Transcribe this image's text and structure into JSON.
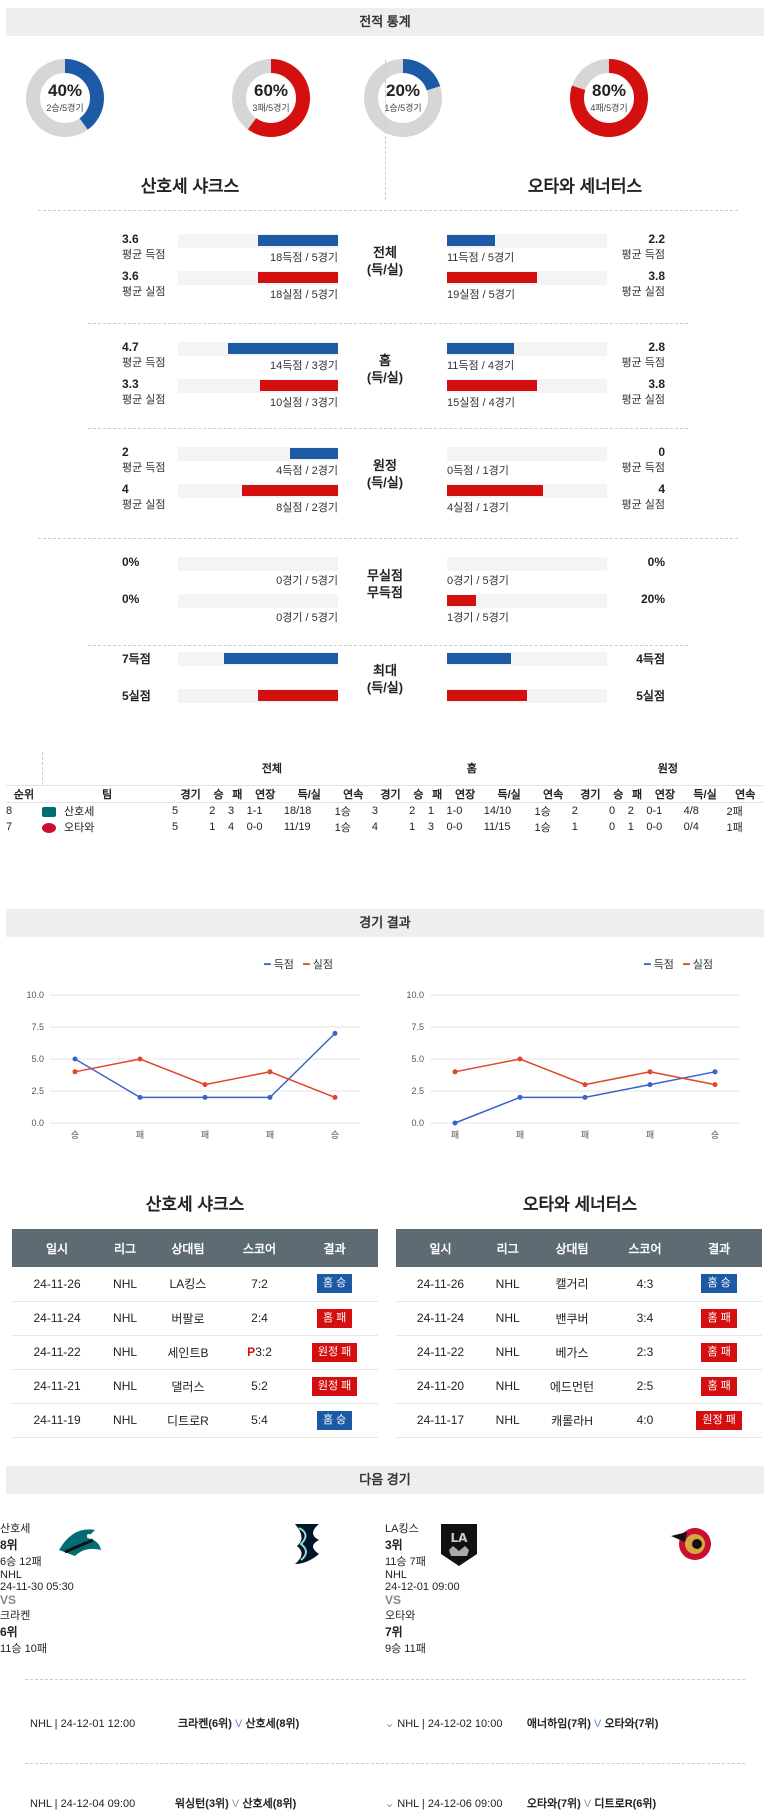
{
  "sections": {
    "stats": "전적 통계",
    "results": "경기 결과",
    "next": "다음 경기"
  },
  "donuts": [
    {
      "pct": "40%",
      "sub": "2승/5경기",
      "value": 0.4,
      "color": "#1c5aa6"
    },
    {
      "pct": "60%",
      "sub": "3패/5경기",
      "value": 0.6,
      "color": "#d40f0f"
    },
    {
      "pct": "20%",
      "sub": "1승/5경기",
      "value": 0.2,
      "color": "#1c5aa6"
    },
    {
      "pct": "80%",
      "sub": "4패/5경기",
      "value": 0.8,
      "color": "#d40f0f"
    }
  ],
  "teams": {
    "home": "산호세 샤크스",
    "away": "오타와 세너터스"
  },
  "stat_groups": [
    {
      "mid": [
        "전체",
        "(득/실)"
      ],
      "rows": [
        {
          "lval": "3.6",
          "llbl": "평균 득점",
          "lcap": "18득점 / 5경기",
          "lfill": 0.5,
          "lcolor": "blue",
          "rval": "2.2",
          "rlbl": "평균 득점",
          "rcap": "11득점 / 5경기",
          "rfill": 0.3,
          "rcolor": "blue"
        },
        {
          "lval": "3.6",
          "llbl": "평균 실점",
          "lcap": "18실점 / 5경기",
          "lfill": 0.5,
          "lcolor": "red",
          "rval": "3.8",
          "rlbl": "평균 실점",
          "rcap": "19실점 / 5경기",
          "rfill": 0.56,
          "rcolor": "red"
        }
      ]
    },
    {
      "mid": [
        "홈",
        "(득/실)"
      ],
      "rows": [
        {
          "lval": "4.7",
          "llbl": "평균 득점",
          "lcap": "14득점 / 3경기",
          "lfill": 0.69,
          "lcolor": "blue",
          "rval": "2.8",
          "rlbl": "평균 득점",
          "rcap": "11득점 / 4경기",
          "rfill": 0.42,
          "rcolor": "blue"
        },
        {
          "lval": "3.3",
          "llbl": "평균 실점",
          "lcap": "10실점 / 3경기",
          "lfill": 0.49,
          "lcolor": "red",
          "rval": "3.8",
          "rlbl": "평균 실점",
          "rcap": "15실점 / 4경기",
          "rfill": 0.56,
          "rcolor": "red"
        }
      ]
    },
    {
      "mid": [
        "원정",
        "(득/실)"
      ],
      "rows": [
        {
          "lval": "2",
          "llbl": "평균 득점",
          "lcap": "4득점 / 2경기",
          "lfill": 0.3,
          "lcolor": "blue",
          "rval": "0",
          "rlbl": "평균 득점",
          "rcap": "0득점 / 1경기",
          "rfill": 0,
          "rcolor": "blue"
        },
        {
          "lval": "4",
          "llbl": "평균 실점",
          "lcap": "8실점 / 2경기",
          "lfill": 0.6,
          "lcolor": "red",
          "rval": "4",
          "rlbl": "평균 실점",
          "rcap": "4실점 / 1경기",
          "rfill": 0.6,
          "rcolor": "red"
        }
      ]
    },
    {
      "mid": [
        "무실점",
        "무득점"
      ],
      "rows": [
        {
          "lval": "0%",
          "llbl": "",
          "lcap": "0경기 / 5경기",
          "lfill": 0,
          "lcolor": "blue",
          "rval": "0%",
          "rlbl": "",
          "rcap": "0경기 / 5경기",
          "rfill": 0,
          "rcolor": "blue"
        },
        {
          "lval": "0%",
          "llbl": "",
          "lcap": "0경기 / 5경기",
          "lfill": 0,
          "lcolor": "red",
          "rval": "20%",
          "rlbl": "",
          "rcap": "1경기 / 5경기",
          "rfill": 0.18,
          "rcolor": "red"
        }
      ]
    },
    {
      "mid": [
        "최대",
        "(득/실)"
      ],
      "rows": [
        {
          "lval": "7득점",
          "llbl": "",
          "lcap": "",
          "lfill": 0.71,
          "lcolor": "blue",
          "rval": "4득점",
          "rlbl": "",
          "rcap": "",
          "rfill": 0.4,
          "rcolor": "blue"
        },
        {
          "lval": "5실점",
          "llbl": "",
          "lcap": "",
          "lfill": 0.5,
          "lcolor": "red",
          "rval": "5실점",
          "rlbl": "",
          "rcap": "",
          "rfill": 0.5,
          "rcolor": "red"
        }
      ]
    }
  ],
  "standings": {
    "groups": [
      "전체",
      "홈",
      "원정"
    ],
    "headers": [
      "순위",
      "팀",
      "경기",
      "승",
      "패",
      "연장",
      "득/실",
      "연속",
      "경기",
      "승",
      "패",
      "연장",
      "득/실",
      "연속",
      "경기",
      "승",
      "패",
      "연장",
      "득/실",
      "연속"
    ],
    "rows": [
      [
        "8",
        "산호세",
        "5",
        "2",
        "3",
        "1-1",
        "18/18",
        "1승",
        "3",
        "2",
        "1",
        "1-0",
        "14/10",
        "1승",
        "2",
        "0",
        "2",
        "0-1",
        "4/8",
        "2패"
      ],
      [
        "7",
        "오타와",
        "5",
        "1",
        "4",
        "0-0",
        "11/19",
        "1승",
        "4",
        "1",
        "3",
        "0-0",
        "11/15",
        "1승",
        "1",
        "0",
        "1",
        "0-0",
        "0/4",
        "1패"
      ]
    ]
  },
  "charts": {
    "legend_score": "득점",
    "legend_concede": "실점",
    "colors": {
      "score": "#3a62c9",
      "concede": "#e0452c"
    },
    "chart_data": [
      {
        "type": "line",
        "categories": [
          "승",
          "패",
          "패",
          "패",
          "승"
        ],
        "ylim": [
          0,
          10
        ],
        "yticks": [
          "0.0",
          "2.5",
          "5.0",
          "7.5",
          "10.0"
        ],
        "series": [
          {
            "name": "득점",
            "values": [
              5,
              2,
              2,
              2,
              7
            ]
          },
          {
            "name": "실점",
            "values": [
              4,
              5,
              3,
              4,
              2
            ]
          }
        ]
      },
      {
        "type": "line",
        "categories": [
          "패",
          "패",
          "패",
          "패",
          "승"
        ],
        "ylim": [
          0,
          10
        ],
        "yticks": [
          "0.0",
          "2.5",
          "5.0",
          "7.5",
          "10.0"
        ],
        "series": [
          {
            "name": "득점",
            "values": [
              0,
              2,
              2,
              3,
              4
            ]
          },
          {
            "name": "실점",
            "values": [
              4,
              5,
              3,
              4,
              3
            ]
          }
        ]
      }
    ]
  },
  "results": {
    "headers": [
      "일시",
      "리그",
      "상대팀",
      "스코어",
      "결과"
    ],
    "home": [
      [
        "24-11-26",
        "NHL",
        "LA킹스",
        "7:2",
        "홈 승",
        "bb",
        ""
      ],
      [
        "24-11-24",
        "NHL",
        "버팔로",
        "2:4",
        "홈 패",
        "br",
        ""
      ],
      [
        "24-11-22",
        "NHL",
        "세인트B",
        "3:2",
        "원정 패",
        "br",
        "P"
      ],
      [
        "24-11-21",
        "NHL",
        "댈러스",
        "5:2",
        "원정 패",
        "br",
        ""
      ],
      [
        "24-11-19",
        "NHL",
        "디트로R",
        "5:4",
        "홈 승",
        "bb",
        ""
      ]
    ],
    "away": [
      [
        "24-11-26",
        "NHL",
        "캘거리",
        "4:3",
        "홈 승",
        "bb",
        ""
      ],
      [
        "24-11-24",
        "NHL",
        "밴쿠버",
        "3:4",
        "홈 패",
        "br",
        ""
      ],
      [
        "24-11-22",
        "NHL",
        "베가스",
        "2:3",
        "홈 패",
        "br",
        ""
      ],
      [
        "24-11-20",
        "NHL",
        "에드먼턴",
        "2:5",
        "홈 패",
        "br",
        ""
      ],
      [
        "24-11-17",
        "NHL",
        "캐롤라H",
        "4:0",
        "원정 패",
        "br",
        ""
      ]
    ]
  },
  "next_games": [
    {
      "league": "NHL",
      "time": "24-11-30 05:30",
      "vs": "VS",
      "left": {
        "name": "산호세",
        "rank": "8위",
        "rec": "6승 12패"
      },
      "right": {
        "name": "크라켄",
        "rank": "6위",
        "rec": "11승 10패"
      }
    },
    {
      "league": "NHL",
      "time": "24-12-01 09:00",
      "vs": "VS",
      "left": {
        "name": "LA킹스",
        "rank": "3위",
        "rec": "11승 7패"
      },
      "right": {
        "name": "오타와",
        "rank": "7위",
        "rec": "9승 11패"
      }
    }
  ],
  "upcoming": [
    {
      "text": "NHL | 24-12-01 12:00",
      "a": "크라켄(6위)",
      "b": "산호세(8위)"
    },
    {
      "text": "NHL | 24-12-02 10:00",
      "a": "애너하임(7위)",
      "b": "오타와(7위)"
    },
    {
      "text": "NHL | 24-12-04 09:00",
      "a": "워싱턴(3위)",
      "b": "산호세(8위)"
    },
    {
      "text": "NHL | 24-12-06 09:00",
      "a": "오타와(7위)",
      "b": "디트로R(6위)"
    }
  ]
}
